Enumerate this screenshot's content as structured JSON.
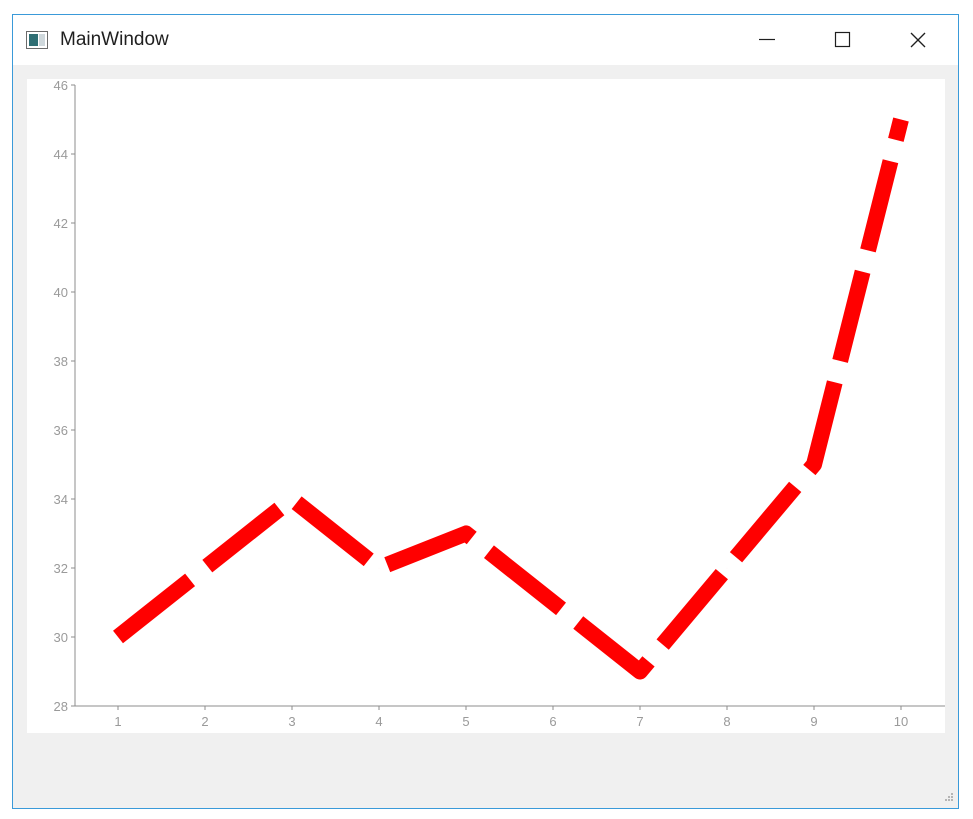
{
  "window": {
    "title": "MainWindow",
    "controls": {
      "minimize": "minimize-icon",
      "maximize": "maximize-icon",
      "close": "close-icon"
    }
  },
  "chart_data": {
    "type": "line",
    "x": [
      1,
      2,
      3,
      4,
      5,
      6,
      7,
      8,
      9,
      10
    ],
    "series": [
      {
        "values": [
          30,
          32,
          34,
          32,
          33,
          31,
          29,
          32,
          35,
          45
        ],
        "color": "#ff0000",
        "line_style": "dashed"
      }
    ],
    "xticks": [
      "1",
      "2",
      "3",
      "4",
      "5",
      "6",
      "7",
      "8",
      "9",
      "10"
    ],
    "yticks": [
      "28",
      "30",
      "32",
      "34",
      "36",
      "38",
      "40",
      "42",
      "44",
      "46"
    ],
    "xlim": [
      0.5,
      10.5
    ],
    "ylim": [
      28,
      46
    ],
    "grid": false,
    "legend": false
  }
}
